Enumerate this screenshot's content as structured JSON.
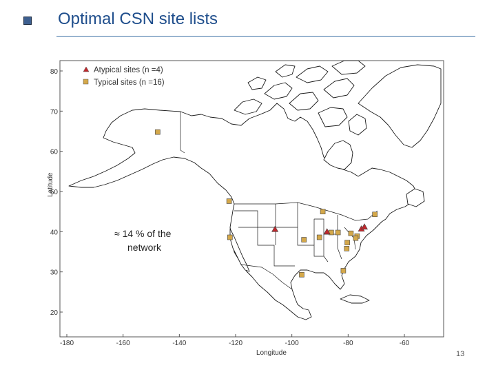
{
  "slide": {
    "title": "Optimal CSN site lists",
    "page_number": "13",
    "annotation_line1": "≈ 14 % of the",
    "annotation_line2": "network"
  },
  "chart_data": {
    "type": "scatter",
    "xlabel": "Longitude",
    "ylabel": "Latitude",
    "xlim": [
      -180,
      -50
    ],
    "ylim": [
      15,
      83
    ],
    "x_ticks": [
      "-180",
      "-160",
      "-140",
      "-120",
      "-100",
      "-80",
      "-60"
    ],
    "y_ticks": [
      "80",
      "70",
      "60",
      "50",
      "40",
      "30",
      "20"
    ],
    "legend_position": "top-left",
    "series": [
      {
        "name": "Atypical sites (n =4)",
        "marker": "triangle",
        "color": "#c0282d",
        "points": [
          [
            -106.0,
            40.6
          ],
          [
            -87.5,
            40.0
          ],
          [
            -75.3,
            40.7
          ],
          [
            -74.2,
            41.2
          ]
        ]
      },
      {
        "name": "Typical sites (n =16)",
        "marker": "square",
        "color": "#d4a84a",
        "points": [
          [
            -147.7,
            64.8
          ],
          [
            -122.3,
            47.6
          ],
          [
            -122.0,
            38.6
          ],
          [
            -89.0,
            45.0
          ],
          [
            -70.5,
            44.3
          ],
          [
            -95.7,
            38.0
          ],
          [
            -90.2,
            38.6
          ],
          [
            -86.0,
            39.8
          ],
          [
            -83.6,
            39.8
          ],
          [
            -79.0,
            39.6
          ],
          [
            -76.8,
            38.9
          ],
          [
            -77.3,
            38.4
          ],
          [
            -80.3,
            37.3
          ],
          [
            -80.5,
            35.8
          ],
          [
            -96.5,
            29.3
          ],
          [
            -81.7,
            30.3
          ]
        ]
      }
    ]
  }
}
